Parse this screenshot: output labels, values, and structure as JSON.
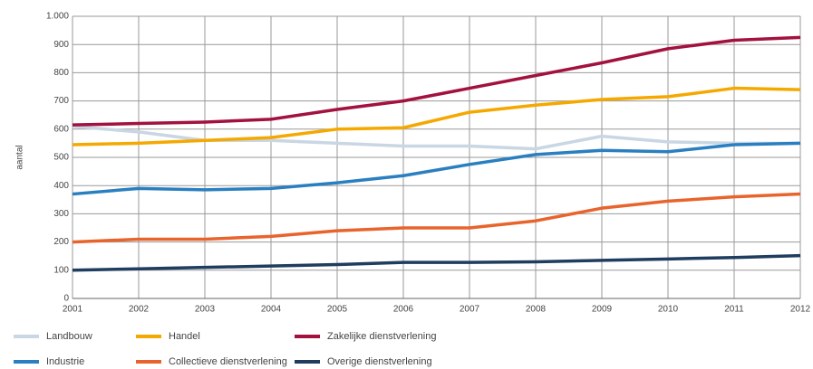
{
  "chart_data": {
    "type": "line",
    "y_label": "aantal",
    "x": [
      2001,
      2002,
      2003,
      2004,
      2005,
      2006,
      2007,
      2008,
      2009,
      2010,
      2011,
      2012
    ],
    "xlim": [
      2001,
      2012
    ],
    "xticks": [
      2001,
      2002,
      2003,
      2004,
      2005,
      2006,
      2007,
      2008,
      2009,
      2010,
      2011,
      2012
    ],
    "ylim": [
      0,
      1000
    ],
    "yticks": [
      0,
      100,
      200,
      300,
      400,
      500,
      600,
      700,
      800,
      900,
      {
        "value": 1000,
        "label": "1.000"
      }
    ],
    "grid": true,
    "series": [
      {
        "name": "Landbouw",
        "color": "#c9d6e3",
        "values": [
          610,
          590,
          560,
          560,
          550,
          540,
          540,
          530,
          575,
          555,
          550,
          550
        ]
      },
      {
        "name": "Handel",
        "color": "#f5a800",
        "values": [
          545,
          550,
          560,
          570,
          600,
          605,
          660,
          685,
          705,
          715,
          745,
          740
        ]
      },
      {
        "name": "Zakelijke dienstverlening",
        "color": "#a3123f",
        "values": [
          615,
          620,
          625,
          635,
          670,
          700,
          745,
          790,
          835,
          885,
          915,
          925
        ]
      },
      {
        "name": "Industrie",
        "color": "#2a7fc0",
        "values": [
          370,
          390,
          385,
          390,
          410,
          435,
          475,
          510,
          525,
          520,
          545,
          550
        ]
      },
      {
        "name": "Collectieve dienstverlening",
        "color": "#e8642c",
        "values": [
          200,
          210,
          210,
          220,
          240,
          250,
          250,
          275,
          320,
          345,
          360,
          370
        ]
      },
      {
        "name": "Overige dienstverlening",
        "color": "#1f3d5e",
        "values": [
          100,
          105,
          110,
          115,
          120,
          128,
          128,
          130,
          135,
          140,
          145,
          152
        ]
      }
    ]
  }
}
